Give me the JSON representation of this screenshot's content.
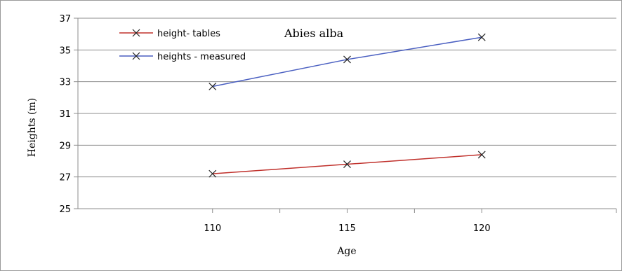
{
  "chart_data": {
    "type": "line",
    "title": "Abies alba",
    "xlabel": "Age",
    "ylabel": "Heights (m)",
    "categories": [
      "110",
      "115",
      "120"
    ],
    "ylim": [
      25,
      37
    ],
    "yticks": [
      25,
      27,
      29,
      31,
      33,
      35,
      37
    ],
    "grid": "horizontal",
    "legend_position": "top-left",
    "series": [
      {
        "name": "height- tables",
        "color": "#c0302b",
        "values": [
          27.2,
          27.8,
          28.4
        ],
        "marker": "x"
      },
      {
        "name": "heights - measured",
        "color": "#4a5fc1",
        "values": [
          32.7,
          34.4,
          35.8
        ],
        "marker": "x"
      }
    ]
  }
}
